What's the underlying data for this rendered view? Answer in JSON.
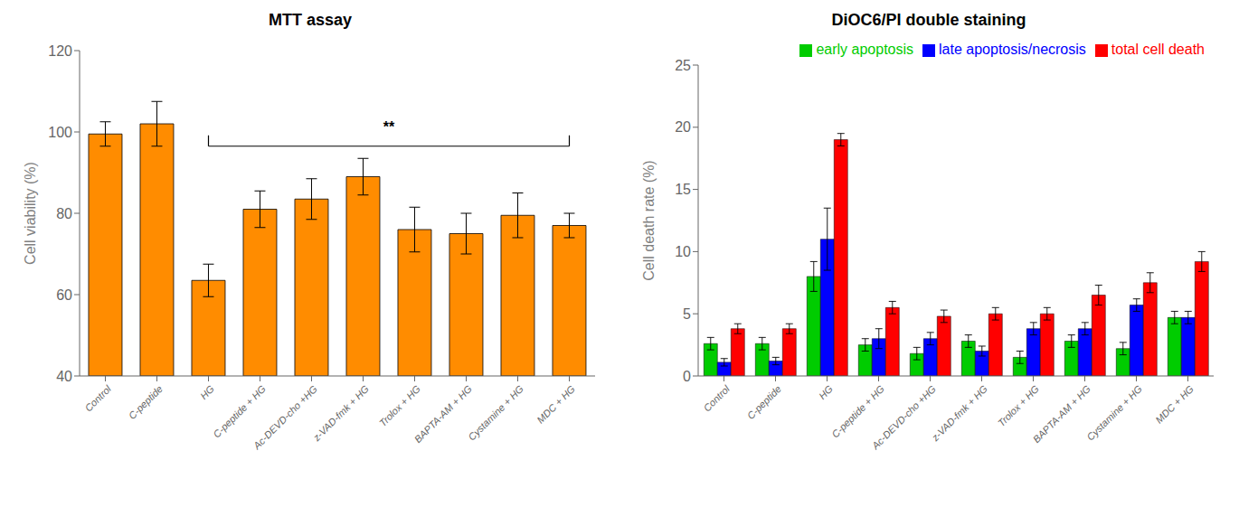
{
  "chart_data": [
    {
      "type": "bar",
      "title": "MTT assay",
      "y_label": "Cell viability (%)",
      "categories": [
        "Control",
        "C-peptide",
        "HG",
        "C-peptide + HG",
        "Ac-DEVD-cho +HG",
        "z-VAD-fmk + HG",
        "Trolox + HG",
        "BAPTA-AM + HG",
        "Cystamine + HG",
        "MDC + HG"
      ],
      "values": [
        99.5,
        102.0,
        63.5,
        81.0,
        83.5,
        89.0,
        76.0,
        75.0,
        79.5,
        77.0
      ],
      "errors": [
        3.0,
        5.5,
        4.0,
        4.5,
        5.0,
        4.5,
        5.5,
        5.0,
        5.5,
        3.0
      ],
      "color": "#FF8C00",
      "ylim": [
        40,
        120
      ],
      "yticks": [
        40,
        60,
        80,
        100,
        120
      ],
      "grid": false,
      "annotations": [
        {
          "text": "**",
          "x_from": "HG",
          "x_to": "MDC + HG",
          "y": 96.5
        }
      ]
    },
    {
      "type": "bar",
      "title": "DiOC6/PI double staining",
      "y_label": "Cell death rate (%)",
      "categories": [
        "Control",
        "C-peptide",
        "HG",
        "C-peptide + HG",
        "Ac-DEVD-cho +HG",
        "z-VAD-fmk + HG",
        "Trolox + HG",
        "BAPTA-AM + HG",
        "Cystamine + HG",
        "MDC + HG"
      ],
      "series": [
        {
          "name": "early apoptosis",
          "color": "#00CC00",
          "values": [
            2.6,
            2.6,
            8.0,
            2.5,
            1.8,
            2.8,
            1.5,
            2.8,
            2.2,
            4.7
          ],
          "errors": [
            0.5,
            0.5,
            1.2,
            0.5,
            0.5,
            0.5,
            0.5,
            0.5,
            0.5,
            0.5
          ]
        },
        {
          "name": "late apoptosis/necrosis",
          "color": "#0000FF",
          "values": [
            1.1,
            1.2,
            11.0,
            3.0,
            3.0,
            2.0,
            3.8,
            3.8,
            5.7,
            4.7
          ],
          "errors": [
            0.3,
            0.3,
            2.5,
            0.8,
            0.5,
            0.4,
            0.5,
            0.5,
            0.5,
            0.5
          ]
        },
        {
          "name": "total cell death",
          "color": "#FF0000",
          "values": [
            3.8,
            3.8,
            19.0,
            5.5,
            4.8,
            5.0,
            5.0,
            6.5,
            7.5,
            9.2
          ],
          "errors": [
            0.4,
            0.4,
            0.5,
            0.5,
            0.5,
            0.5,
            0.5,
            0.8,
            0.8,
            0.8
          ]
        }
      ],
      "ylim": [
        0,
        25
      ],
      "yticks": [
        0,
        5,
        10,
        15,
        20,
        25
      ],
      "grid": false,
      "legend": "upper right"
    }
  ]
}
